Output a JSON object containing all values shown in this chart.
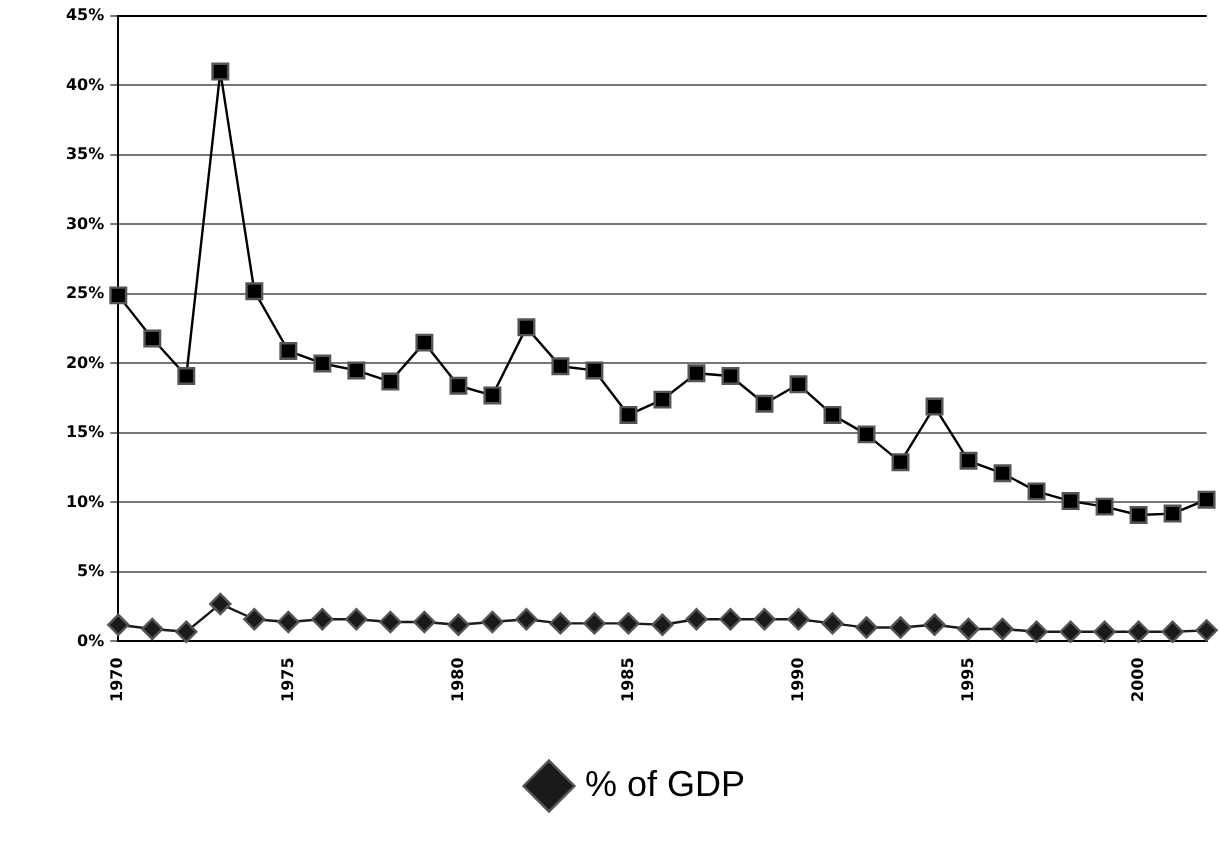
{
  "chart_data": {
    "type": "line",
    "x": [
      1970,
      1971,
      1972,
      1973,
      1974,
      1975,
      1976,
      1977,
      1978,
      1979,
      1980,
      1981,
      1982,
      1983,
      1984,
      1985,
      1986,
      1987,
      1988,
      1989,
      1990,
      1991,
      1992,
      1993,
      1994,
      1995,
      1996,
      1997,
      1998,
      1999,
      2000,
      2001,
      2002
    ],
    "series": [
      {
        "color": "#000000",
        "marker": "square",
        "values": [
          24.9,
          21.8,
          19.1,
          41.0,
          25.2,
          20.9,
          20.0,
          19.5,
          18.7,
          21.5,
          18.4,
          17.7,
          22.6,
          19.8,
          19.5,
          16.3,
          17.4,
          19.3,
          19.1,
          17.1,
          18.5,
          16.3,
          14.9,
          12.9,
          16.9,
          13.0,
          12.1,
          10.8,
          10.1,
          9.7,
          9.1,
          9.2,
          10.2
        ]
      },
      {
        "name": "% of GDP",
        "color": "#1a1a1a",
        "marker": "diamond",
        "values": [
          1.2,
          0.9,
          0.7,
          2.7,
          1.6,
          1.4,
          1.6,
          1.6,
          1.4,
          1.4,
          1.2,
          1.4,
          1.6,
          1.3,
          1.3,
          1.3,
          1.2,
          1.6,
          1.6,
          1.6,
          1.6,
          1.3,
          1.0,
          1.0,
          1.2,
          0.9,
          0.9,
          0.7,
          0.7,
          0.7,
          0.7,
          0.7,
          0.8
        ]
      }
    ],
    "xlim": [
      1970,
      2002
    ],
    "xticks": [
      1970,
      1975,
      1980,
      1985,
      1990,
      1995,
      2000
    ],
    "ylim": [
      0,
      45
    ],
    "yticks": [
      {
        "value": 0,
        "label": "0%"
      },
      {
        "value": 5,
        "label": "5%"
      },
      {
        "value": 10,
        "label": "10%"
      },
      {
        "value": 15,
        "label": "15%"
      },
      {
        "value": 20,
        "label": "20%"
      },
      {
        "value": 25,
        "label": "25%"
      },
      {
        "value": 30,
        "label": "30%"
      },
      {
        "value": 35,
        "label": "35%"
      },
      {
        "value": 40,
        "label": "40%"
      },
      {
        "value": 45,
        "label": "45%"
      }
    ],
    "grid": "y",
    "legend": "bottom",
    "line_style": "solid"
  }
}
